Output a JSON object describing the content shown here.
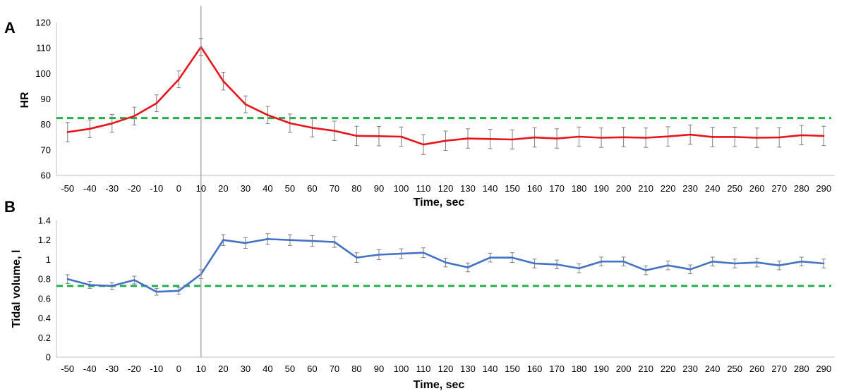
{
  "chart_data": [
    {
      "type": "line",
      "panel_label": "A",
      "xlabel": "Time, sec",
      "ylabel": "HR",
      "ylim": [
        60,
        120
      ],
      "yticks": [
        60,
        70,
        80,
        90,
        100,
        110,
        120
      ],
      "ytick_labels": [
        "60",
        "70",
        "80",
        "90",
        "100",
        "110",
        "120"
      ],
      "x": [
        -50,
        -40,
        -30,
        -20,
        -10,
        0,
        10,
        20,
        30,
        40,
        50,
        60,
        70,
        80,
        90,
        100,
        110,
        120,
        130,
        140,
        150,
        160,
        170,
        180,
        190,
        200,
        210,
        220,
        230,
        240,
        250,
        260,
        270,
        280,
        290
      ],
      "xtick_labels": [
        "-50",
        "-40",
        "-30",
        "-20",
        "-10",
        "0",
        "10",
        "20",
        "30",
        "40",
        "50",
        "60",
        "70",
        "80",
        "90",
        "100",
        "110",
        "120",
        "130",
        "140",
        "150",
        "160",
        "170",
        "180",
        "190",
        "200",
        "210",
        "220",
        "230",
        "240",
        "250",
        "260",
        "270",
        "280",
        "290"
      ],
      "series": [
        {
          "color": "#e8141b",
          "values": [
            77.0,
            78.3,
            80.4,
            83.3,
            88.3,
            97.7,
            110.4,
            97.0,
            87.9,
            83.7,
            80.5,
            78.7,
            77.5,
            75.5,
            75.4,
            75.2,
            72.1,
            73.6,
            74.5,
            74.3,
            74.1,
            74.9,
            74.5,
            75.2,
            74.8,
            75.0,
            74.8,
            75.3,
            76.0,
            75.1,
            75.1,
            74.8,
            74.9,
            75.8,
            75.5
          ],
          "errors": [
            3.8,
            3.5,
            3.5,
            3.5,
            3.3,
            3.3,
            3.3,
            3.5,
            3.3,
            3.4,
            3.6,
            3.6,
            3.8,
            3.8,
            3.8,
            3.8,
            3.9,
            3.8,
            3.8,
            3.8,
            3.8,
            3.8,
            3.8,
            3.8,
            3.8,
            3.8,
            3.8,
            3.8,
            3.8,
            3.8,
            3.8,
            3.8,
            3.8,
            3.8,
            3.8
          ]
        }
      ],
      "reference_line": {
        "value": 82.5,
        "color": "#22b04b",
        "style": "dashed"
      },
      "event_line_x": 10,
      "grid": false,
      "legend": "none"
    },
    {
      "type": "line",
      "panel_label": "B",
      "xlabel": "Time, sec",
      "ylabel": "Tidal volume, l",
      "ylim": [
        0,
        1.4
      ],
      "yticks": [
        0,
        0.2,
        0.4,
        0.6,
        0.8,
        1,
        1.2,
        1.4
      ],
      "ytick_labels": [
        "0",
        "0.2",
        "0.4",
        "0.6",
        "0.8",
        "1",
        "1.2",
        "1.4"
      ],
      "x": [
        -50,
        -40,
        -30,
        -20,
        -10,
        0,
        10,
        20,
        30,
        40,
        50,
        60,
        70,
        80,
        90,
        100,
        110,
        120,
        130,
        140,
        150,
        160,
        170,
        180,
        190,
        200,
        210,
        220,
        230,
        240,
        250,
        260,
        270,
        280,
        290
      ],
      "xtick_labels": [
        "-50",
        "-40",
        "-30",
        "-20",
        "-10",
        "0",
        "10",
        "20",
        "30",
        "40",
        "50",
        "60",
        "70",
        "80",
        "90",
        "100",
        "110",
        "120",
        "130",
        "140",
        "150",
        "160",
        "170",
        "180",
        "190",
        "200",
        "210",
        "220",
        "230",
        "240",
        "250",
        "260",
        "270",
        "280",
        "290"
      ],
      "series": [
        {
          "color": "#4472c4",
          "values": [
            0.8,
            0.74,
            0.73,
            0.79,
            0.67,
            0.68,
            0.85,
            1.2,
            1.17,
            1.21,
            1.2,
            1.19,
            1.18,
            1.02,
            1.05,
            1.06,
            1.07,
            0.97,
            0.92,
            1.02,
            1.02,
            0.96,
            0.95,
            0.91,
            0.98,
            0.98,
            0.89,
            0.94,
            0.9,
            0.98,
            0.96,
            0.97,
            0.94,
            0.98,
            0.96
          ],
          "errors": [
            0.045,
            0.035,
            0.035,
            0.04,
            0.035,
            0.035,
            0.045,
            0.055,
            0.055,
            0.055,
            0.055,
            0.055,
            0.055,
            0.05,
            0.05,
            0.05,
            0.05,
            0.045,
            0.045,
            0.045,
            0.05,
            0.045,
            0.045,
            0.045,
            0.045,
            0.045,
            0.045,
            0.045,
            0.045,
            0.045,
            0.045,
            0.045,
            0.045,
            0.045,
            0.045
          ]
        }
      ],
      "reference_line": {
        "value": 0.73,
        "color": "#22b04b",
        "style": "dashed"
      },
      "event_line_x": 10,
      "grid": false,
      "legend": "none"
    }
  ]
}
